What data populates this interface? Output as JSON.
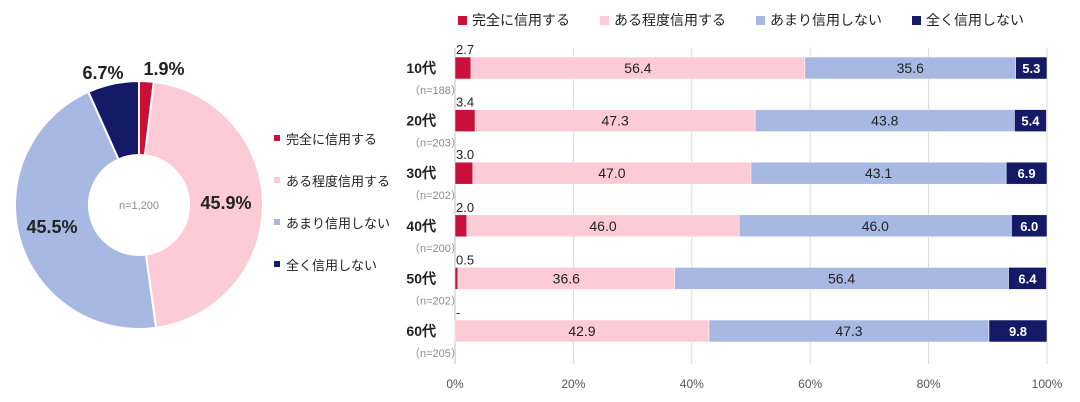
{
  "colors": {
    "full": "#c8103a",
    "some": "#fccbd6",
    "notmuch": "#a7b8e3",
    "none": "#141a66"
  },
  "chart_data": [
    {
      "type": "pie",
      "title": "",
      "center_label": "n=1,200",
      "slices": [
        {
          "name": "完全に信用する",
          "value": 1.9,
          "label": "1.9%",
          "color_key": "full"
        },
        {
          "name": "ある程度信用する",
          "value": 45.9,
          "label": "45.9%",
          "color_key": "some"
        },
        {
          "name": "あまり信用しない",
          "value": 45.5,
          "label": "45.5%",
          "color_key": "notmuch"
        },
        {
          "name": "全く信用しない",
          "value": 6.7,
          "label": "6.7%",
          "color_key": "none"
        }
      ],
      "legend": [
        "完全に信用する",
        "ある程度信用する",
        "あまり信用しない",
        "全く信用しない"
      ],
      "legend_position": "right"
    },
    {
      "type": "bar",
      "orientation": "horizontal",
      "stacked": true,
      "categories": [
        "10代",
        "20代",
        "30代",
        "40代",
        "50代",
        "60代"
      ],
      "category_n": [
        "（n=188）",
        "（n=203）",
        "（n=202）",
        "（n=200）",
        "（n=202）",
        "（n=205）"
      ],
      "series": [
        {
          "name": "完全に信用する",
          "color_key": "full",
          "values": [
            2.7,
            3.4,
            3.0,
            2.0,
            0.5,
            0
          ],
          "labels": [
            "2.7",
            "3.4",
            "3.0",
            "2.0",
            "0.5",
            "-"
          ]
        },
        {
          "name": "ある程度信用する",
          "color_key": "some",
          "values": [
            56.4,
            47.3,
            47.0,
            46.0,
            36.6,
            42.9
          ],
          "labels": [
            "56.4",
            "47.3",
            "47.0",
            "46.0",
            "36.6",
            "42.9"
          ]
        },
        {
          "name": "あまり信用しない",
          "color_key": "notmuch",
          "values": [
            35.6,
            43.8,
            43.1,
            46.0,
            56.4,
            47.3
          ],
          "labels": [
            "35.6",
            "43.8",
            "43.1",
            "46.0",
            "56.4",
            "47.3"
          ]
        },
        {
          "name": "全く信用しない",
          "color_key": "none",
          "values": [
            5.3,
            5.4,
            6.9,
            6.0,
            6.4,
            9.8
          ],
          "labels": [
            "5.3",
            "5.4",
            "6.9",
            "6.0",
            "6.4",
            "9.8"
          ]
        }
      ],
      "xlim": [
        0,
        100
      ],
      "xticks": [
        "0%",
        "20%",
        "40%",
        "60%",
        "80%",
        "100%"
      ],
      "grid": true,
      "legend_position": "top"
    }
  ]
}
